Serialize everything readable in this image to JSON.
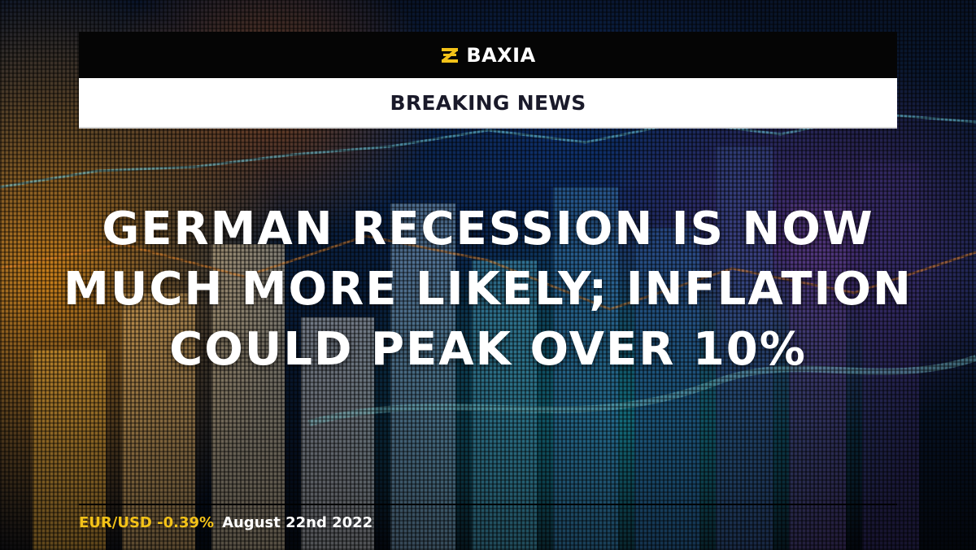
{
  "brand": {
    "name": "BAXIA",
    "logo_icon": "baxia-logo-icon",
    "accent_color": "#f3c218"
  },
  "banner": {
    "label": "BREAKING NEWS"
  },
  "headline": {
    "text": "GERMAN RECESSION IS NOW MUCH MORE LIKELY; INFLATION COULD PEAK OVER 10%"
  },
  "footer": {
    "ticker": "EUR/USD -0.39%",
    "date": "August 22nd 2022"
  }
}
